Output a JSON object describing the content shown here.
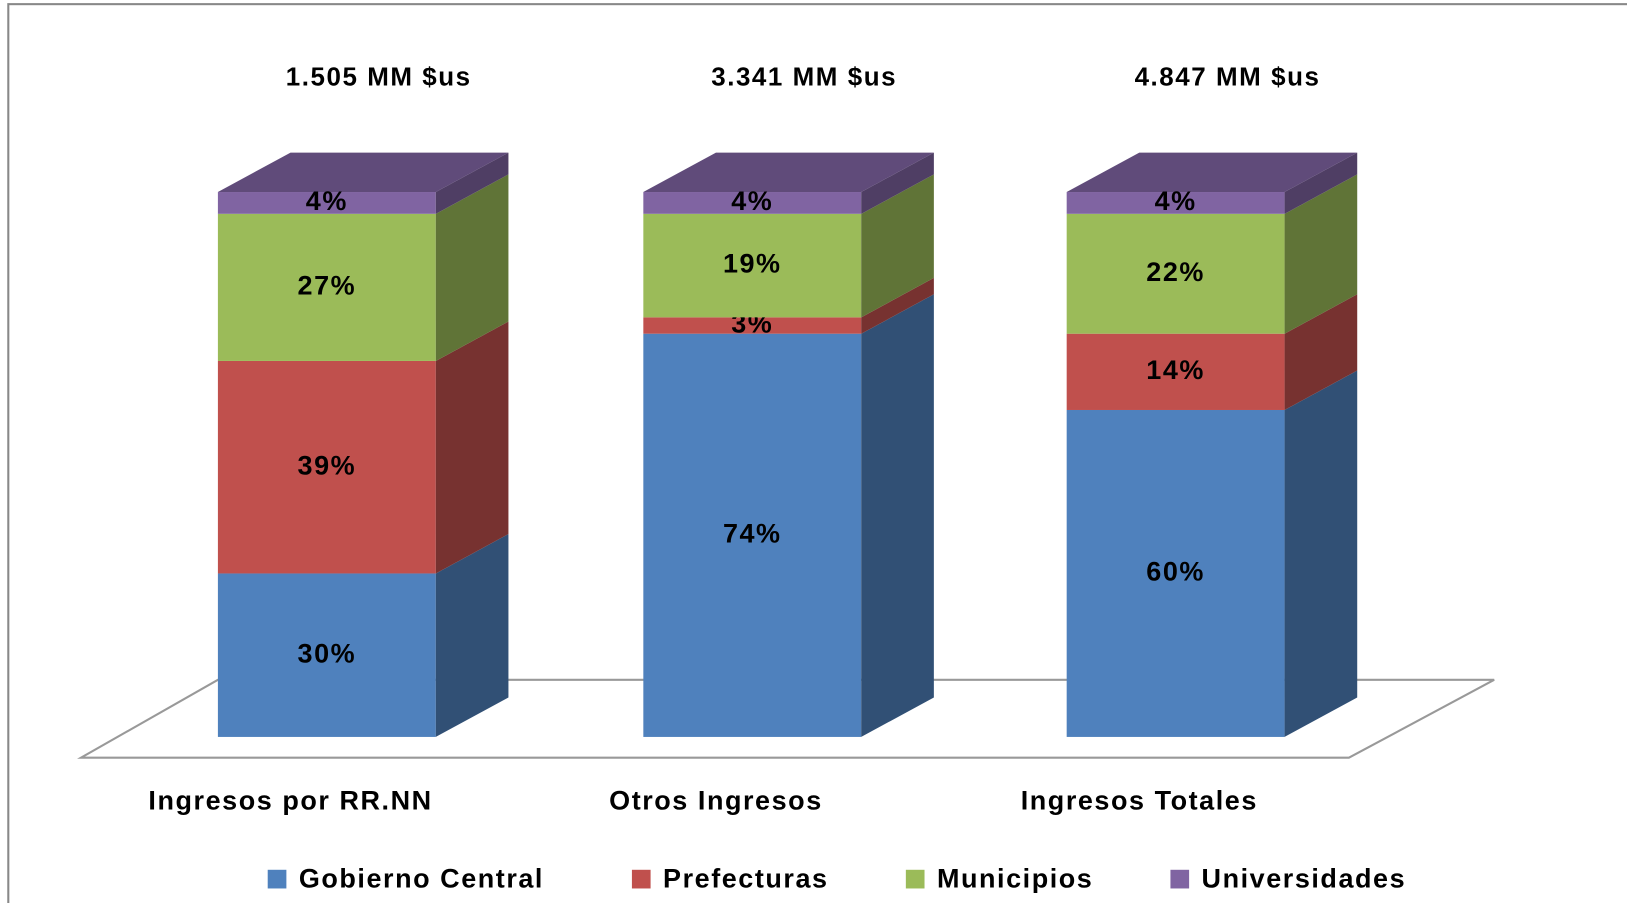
{
  "chart_data": {
    "type": "bar3d-stacked",
    "categories": [
      "Ingresos por RR.NN",
      "Otros Ingresos",
      "Ingresos Totales"
    ],
    "annotations": [
      "1.505 MM $us",
      "3.341 MM $us",
      "4.847 MM $us"
    ],
    "series": [
      {
        "name": "Gobierno Central",
        "color": "#4f81bd",
        "values": [
          30,
          74,
          60
        ],
        "value_labels": [
          "30%",
          "74%",
          "60%"
        ]
      },
      {
        "name": "Prefecturas",
        "color": "#c0504d",
        "values": [
          39,
          3,
          14
        ],
        "value_labels": [
          "39%",
          "3%",
          "14%"
        ]
      },
      {
        "name": "Municipios",
        "color": "#9bbb59",
        "values": [
          27,
          19,
          22
        ],
        "value_labels": [
          "27%",
          "19%",
          "22%"
        ]
      },
      {
        "name": "Universidades",
        "color": "#8064a2",
        "values": [
          4,
          4,
          4
        ],
        "value_labels": [
          "4%",
          "4%",
          "4%"
        ]
      }
    ],
    "legend": "bottom"
  }
}
